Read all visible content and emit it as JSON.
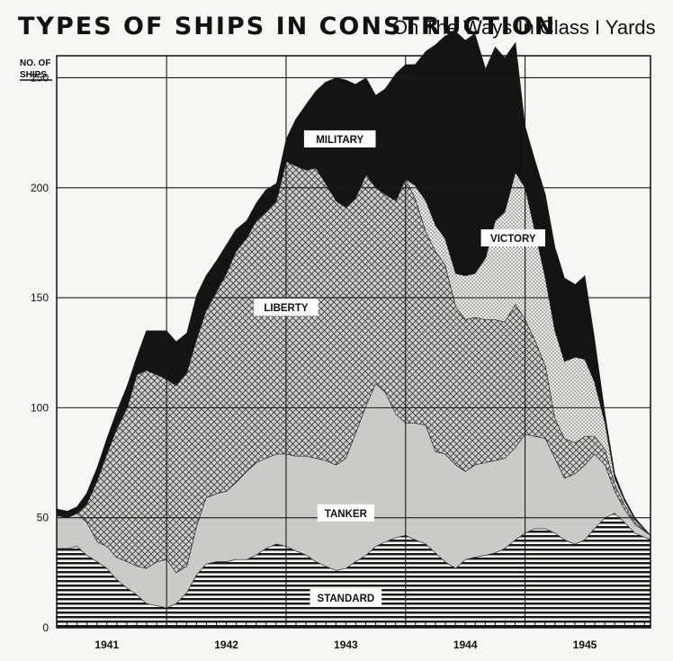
{
  "chart_data": {
    "type": "area",
    "stacked": true,
    "title": "TYPES OF SHIPS IN CONSTRUCTION",
    "subtitle": "On The Ways In Class I Yards",
    "ylabel_line1": "NO. OF",
    "ylabel_line2": "SHIPS",
    "xlabel": "",
    "xlim": [
      1940.58,
      1945.55
    ],
    "ylim": [
      0,
      260
    ],
    "yticks": [
      0,
      50,
      100,
      150,
      200,
      250
    ],
    "xticks": [
      {
        "label": "1941",
        "value": 1941
      },
      {
        "label": "1942",
        "value": 1942
      },
      {
        "label": "1943",
        "value": 1943
      },
      {
        "label": "1944",
        "value": 1944
      },
      {
        "label": "1945",
        "value": 1945
      }
    ],
    "x": [
      1940.58,
      1940.67,
      1940.75,
      1940.83,
      1940.92,
      1941.0,
      1941.08,
      1941.17,
      1941.25,
      1941.33,
      1941.42,
      1941.5,
      1941.58,
      1941.67,
      1941.75,
      1941.83,
      1941.92,
      1942.0,
      1942.08,
      1942.17,
      1942.25,
      1942.33,
      1942.42,
      1942.5,
      1942.58,
      1942.67,
      1942.75,
      1942.83,
      1942.92,
      1943.0,
      1943.08,
      1943.17,
      1943.25,
      1943.33,
      1943.42,
      1943.5,
      1943.58,
      1943.67,
      1943.75,
      1943.83,
      1943.92,
      1944.0,
      1944.08,
      1944.17,
      1944.25,
      1944.33,
      1944.42,
      1944.5,
      1944.58,
      1944.67,
      1944.75,
      1944.83,
      1944.92,
      1945.0,
      1945.08,
      1945.17,
      1945.25,
      1945.33,
      1945.42,
      1945.55
    ],
    "series": [
      {
        "name": "STANDARD",
        "label": "STANDARD",
        "pattern": "horizontal-lines",
        "values": [
          36,
          36,
          37,
          33,
          30,
          27,
          22,
          18,
          15,
          11,
          10,
          9,
          11,
          16,
          24,
          29,
          30,
          30,
          31,
          31,
          33,
          36,
          38,
          37,
          35,
          33,
          30,
          28,
          26,
          27,
          30,
          33,
          37,
          39,
          41,
          42,
          40,
          38,
          34,
          30,
          27,
          31,
          32,
          33,
          34,
          36,
          40,
          43,
          45,
          45,
          43,
          40,
          38,
          40,
          45,
          50,
          52,
          48,
          43,
          40
        ]
      },
      {
        "name": "TANKER",
        "label": "TANKER",
        "pattern": "light-gray",
        "values": [
          15,
          14,
          15,
          15,
          9,
          10,
          10,
          12,
          13,
          16,
          20,
          22,
          14,
          12,
          22,
          30,
          31,
          32,
          35,
          40,
          42,
          41,
          41,
          42,
          43,
          45,
          47,
          48,
          48,
          50,
          58,
          68,
          74,
          68,
          56,
          51,
          53,
          54,
          46,
          49,
          47,
          40,
          42,
          42,
          42,
          41,
          42,
          45,
          42,
          41,
          34,
          28,
          32,
          34,
          34,
          24,
          10,
          6,
          4,
          2
        ]
      },
      {
        "name": "LIBERTY",
        "label": "LIBERTY",
        "pattern": "crosshatch",
        "values": [
          0,
          0,
          0,
          8,
          28,
          42,
          58,
          70,
          87,
          90,
          85,
          82,
          85,
          88,
          85,
          85,
          92,
          99,
          105,
          106,
          110,
          112,
          115,
          133,
          132,
          130,
          132,
          126,
          120,
          114,
          107,
          105,
          89,
          90,
          97,
          111,
          102,
          88,
          91,
          86,
          72,
          69,
          67,
          65,
          64,
          62,
          65,
          52,
          44,
          33,
          18,
          18,
          14,
          13,
          8,
          7,
          3,
          2,
          1,
          0
        ]
      },
      {
        "name": "VICTORY",
        "label": "VICTORY",
        "pattern": "dots",
        "values": [
          0,
          0,
          0,
          0,
          0,
          0,
          0,
          0,
          0,
          0,
          0,
          0,
          0,
          0,
          0,
          0,
          0,
          0,
          0,
          0,
          0,
          0,
          0,
          0,
          0,
          0,
          0,
          0,
          0,
          0,
          0,
          0,
          0,
          0,
          0,
          0,
          6,
          14,
          12,
          12,
          15,
          20,
          20,
          28,
          45,
          50,
          60,
          60,
          50,
          40,
          40,
          35,
          39,
          35,
          25,
          12,
          3,
          2,
          1,
          0
        ]
      },
      {
        "name": "MILITARY",
        "label": "MILITARY",
        "pattern": "solid-black",
        "values": [
          3,
          3,
          3,
          5,
          6,
          7,
          8,
          10,
          8,
          18,
          20,
          22,
          20,
          18,
          20,
          16,
          14,
          13,
          10,
          8,
          8,
          10,
          8,
          10,
          21,
          30,
          35,
          46,
          56,
          58,
          52,
          44,
          42,
          48,
          58,
          52,
          55,
          68,
          82,
          92,
          110,
          107,
          109,
          86,
          79,
          70,
          59,
          28,
          32,
          38,
          38,
          38,
          33,
          38,
          20,
          4,
          2,
          1,
          1,
          0
        ]
      }
    ]
  }
}
